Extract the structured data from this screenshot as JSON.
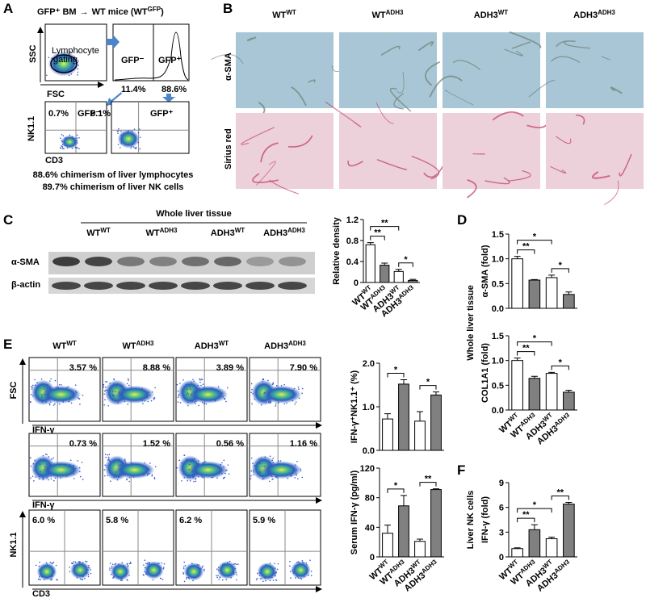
{
  "panel_labels": [
    "A",
    "B",
    "C",
    "D",
    "E",
    "F"
  ],
  "panel_a": {
    "header_left": "GFP⁺ BM",
    "header_arrow": "→",
    "header_right": "WT mice (WT",
    "header_sup": "GFP",
    "header_end": ")",
    "ssc": "SSC",
    "fsc": "FSC",
    "gate": [
      "Lymphocyte",
      "gating"
    ],
    "hist_neg": "GFP⁻",
    "hist_pos": "GFP⁺",
    "pct_neg": "11.4%",
    "pct_pos": "88.6%",
    "flow": [
      {
        "pct": "0.7%",
        "label": "GFP⁻"
      },
      {
        "pct": "6.1%",
        "label": "GFP⁺"
      }
    ],
    "nk": "NK1.1",
    "cd3": "CD3",
    "notes": [
      "88.6% chimerism of liver lymphocytes",
      "89.7% chimerism of liver NK cells"
    ]
  },
  "panel_b": {
    "groups": [
      {
        "base": "WT",
        "sup": "WT"
      },
      {
        "base": "WT",
        "sup": "ADH3"
      },
      {
        "base": "ADH3",
        "sup": "WT"
      },
      {
        "base": "ADH3",
        "sup": "ADH3"
      }
    ],
    "rows": [
      "α-SMA",
      "Sirius red"
    ]
  },
  "panel_c": {
    "title": "Whole liver tissue",
    "groups": [
      {
        "base": "WT",
        "sup": "WT"
      },
      {
        "base": "WT",
        "sup": "ADH3"
      },
      {
        "base": "ADH3",
        "sup": "WT"
      },
      {
        "base": "ADH3",
        "sup": "ADH3"
      }
    ],
    "rows": [
      "α-SMA",
      "β-actin"
    ]
  },
  "panel_d": {
    "ylabel": "Whole liver tissue"
  },
  "panel_e": {
    "groups": [
      {
        "base": "WT",
        "sup": "WT"
      },
      {
        "base": "WT",
        "sup": "ADH3"
      },
      {
        "base": "ADH3",
        "sup": "WT"
      },
      {
        "base": "ADH3",
        "sup": "ADH3"
      }
    ],
    "rows": [
      {
        "y": "FSC",
        "x": "IFN-γ",
        "pcts": [
          "3.57 %",
          "8.88 %",
          "3.89 %",
          "7.90 %"
        ]
      },
      {
        "x": "IFN-γ",
        "pcts": [
          "0.73 %",
          "1.52 %",
          "0.56 %",
          "1.16 %"
        ]
      },
      {
        "y": "NK1.1",
        "x": "CD3",
        "pcts": [
          "6.0 %",
          "5.8 %",
          "6.2 %",
          "5.9 %"
        ]
      }
    ]
  },
  "panel_f": {
    "ylabel": "Liver NK cells"
  },
  "chart_data": [
    {
      "type": "bar",
      "ylabel": "Relative density",
      "ylim": [
        0,
        1.2
      ],
      "yticks": [
        0,
        0.4,
        0.8,
        1.2
      ],
      "values": [
        0.72,
        0.33,
        0.21,
        0.04
      ],
      "errors": [
        0.04,
        0.04,
        0.04,
        0.02
      ],
      "colors": [
        "#ffffff",
        "#808080",
        "#ffffff",
        "#808080"
      ],
      "annotations": [
        "**",
        "**",
        "*"
      ],
      "categories": [
        {
          "base": "WT",
          "sup": "WT"
        },
        {
          "base": "WT",
          "sup": "ADH3"
        },
        {
          "base": "ADH3",
          "sup": "WT"
        },
        {
          "base": "ADH3",
          "sup": "ADH3"
        }
      ]
    },
    {
      "type": "bar",
      "ylabel": "α-SMA (fold)",
      "ylim": [
        0,
        1.5
      ],
      "yticks": [
        {
          "value": 0,
          "label": "0.0"
        },
        0.5,
        {
          "value": 1,
          "label": "1.0"
        },
        1.5
      ],
      "values": [
        1.0,
        0.57,
        0.62,
        0.28
      ],
      "errors": [
        0.05,
        0.01,
        0.05,
        0.05
      ],
      "colors": [
        "#ffffff",
        "#808080",
        "#ffffff",
        "#808080"
      ],
      "annotations": [
        "*",
        "**",
        "*"
      ]
    },
    {
      "type": "bar",
      "ylabel": "COL1A1 (fold)",
      "ylim": [
        0,
        1.5
      ],
      "yticks": [
        {
          "value": 0,
          "label": "0.0"
        },
        0.5,
        {
          "value": 1,
          "label": "1.0"
        },
        1.5
      ],
      "values": [
        1.0,
        0.64,
        0.74,
        0.36
      ],
      "errors": [
        0.05,
        0.04,
        0.02,
        0.04
      ],
      "colors": [
        "#ffffff",
        "#808080",
        "#ffffff",
        "#808080"
      ],
      "annotations": [
        "*",
        "**",
        "*"
      ],
      "categories": [
        {
          "base": "WT",
          "sup": "WT"
        },
        {
          "base": "WT",
          "sup": "ADH3"
        },
        {
          "base": "ADH3",
          "sup": "WT"
        },
        {
          "base": "ADH3",
          "sup": "ADH3"
        }
      ]
    },
    {
      "type": "bar",
      "ylabel": "IFN-γ⁺NK1.1⁺ (%)",
      "ylim": [
        0,
        2
      ],
      "yticks": [
        {
          "value": 0,
          "label": "0.0"
        },
        {
          "value": 1,
          "label": "1.0"
        },
        {
          "value": 2,
          "label": "2.0"
        }
      ],
      "values": [
        0.72,
        1.52,
        0.67,
        1.27
      ],
      "errors": [
        0.12,
        0.1,
        0.22,
        0.07
      ],
      "colors": [
        "#ffffff",
        "#808080",
        "#ffffff",
        "#808080"
      ],
      "annotations": [
        "*",
        "*"
      ]
    },
    {
      "type": "bar",
      "ylabel": "Serum IFN-γ (pg/ml)",
      "ylim": [
        0,
        120
      ],
      "yticks": [
        0,
        40,
        80,
        120
      ],
      "values": [
        32,
        69,
        21,
        91
      ],
      "errors": [
        11,
        14,
        3,
        1
      ],
      "colors": [
        "#ffffff",
        "#808080",
        "#ffffff",
        "#808080"
      ],
      "annotations": [
        "*",
        "**"
      ],
      "categories": [
        {
          "base": "WT",
          "sup": "WT"
        },
        {
          "base": "WT",
          "sup": "ADH3"
        },
        {
          "base": "ADH3",
          "sup": "WT"
        },
        {
          "base": "ADH3",
          "sup": "ADH3"
        }
      ]
    },
    {
      "type": "bar",
      "ylabel": "IFN-γ (fold)",
      "ylim": [
        0,
        9
      ],
      "yticks": [
        0,
        3,
        6,
        9
      ],
      "values": [
        1.0,
        3.3,
        2.2,
        6.4
      ],
      "errors": [
        0.1,
        0.6,
        0.2,
        0.2
      ],
      "colors": [
        "#ffffff",
        "#808080",
        "#ffffff",
        "#808080"
      ],
      "annotations": [
        "*",
        "**",
        "**"
      ],
      "categories": [
        {
          "base": "WT",
          "sup": "WT"
        },
        {
          "base": "WT",
          "sup": "ADH3"
        },
        {
          "base": "ADH3",
          "sup": "WT"
        },
        {
          "base": "ADH3",
          "sup": "ADH3"
        }
      ]
    }
  ]
}
